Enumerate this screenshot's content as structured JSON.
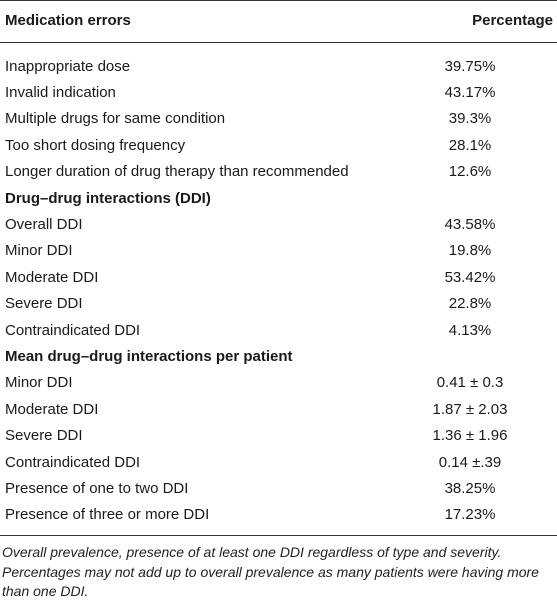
{
  "table": {
    "headers": {
      "col1": "Medication errors",
      "col2": "Percentage"
    },
    "rows": [
      {
        "label": "Inappropriate dose",
        "value": "39.75%"
      },
      {
        "label": "Invalid indication",
        "value": "43.17%"
      },
      {
        "label": "Multiple drugs for same condition",
        "value": "39.3%"
      },
      {
        "label": "Too short dosing frequency",
        "value": "28.1%"
      },
      {
        "label": "Longer duration of drug therapy than recommended",
        "value": "12.6%"
      },
      {
        "label": "Drug–drug interactions (DDI)",
        "value": ""
      },
      {
        "label": "Overall DDI",
        "value": "43.58%"
      },
      {
        "label": "Minor DDI",
        "value": "19.8%"
      },
      {
        "label": "Moderate DDI",
        "value": "53.42%"
      },
      {
        "label": "Severe DDI",
        "value": "22.8%"
      },
      {
        "label": "Contraindicated DDI",
        "value": "4.13%"
      },
      {
        "label": "Mean drug–drug interactions per patient",
        "value": ""
      },
      {
        "label": "Minor DDI",
        "value": "0.41 ± 0.3"
      },
      {
        "label": "Moderate DDI",
        "value": "1.87 ± 2.03"
      },
      {
        "label": "Severe DDI",
        "value": "1.36 ± 1.96"
      },
      {
        "label": "Contraindicated DDI",
        "value": "0.14 ±.39"
      },
      {
        "label": "Presence of one to two DDI",
        "value": "38.25%"
      },
      {
        "label": "Presence of three or more DDI",
        "value": "17.23%"
      }
    ]
  },
  "footnote": {
    "line1": "Overall prevalence, presence of at least one DDI regardless of type and severity.",
    "line2": "Percentages may not add up to overall prevalence as many patients were having more than one DDI."
  }
}
